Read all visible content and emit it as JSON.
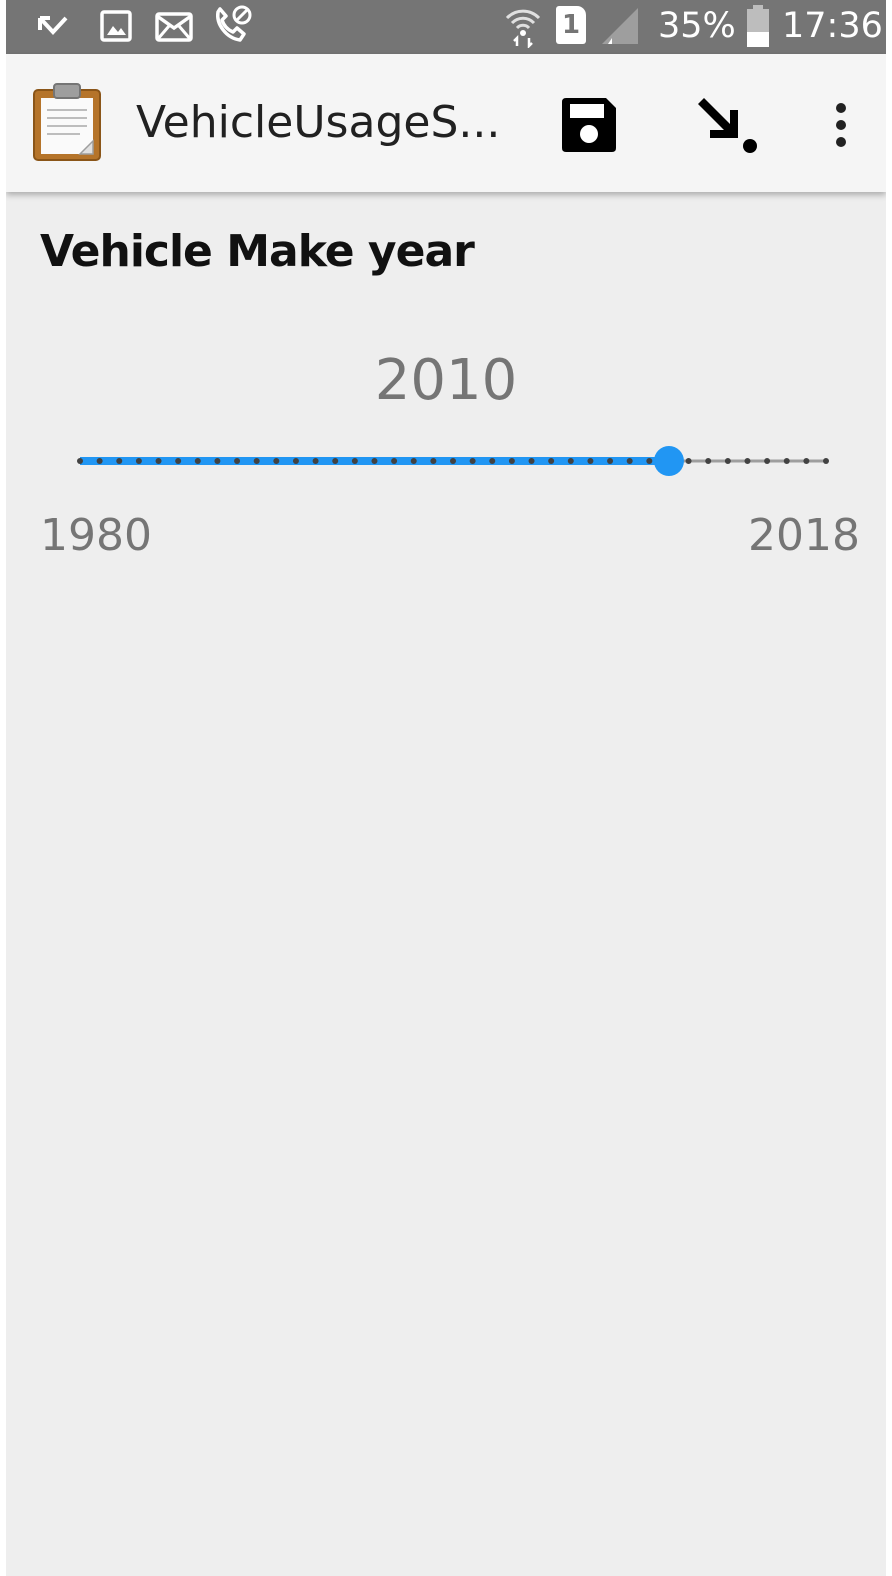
{
  "status_bar": {
    "icons": [
      "missed-call-arrow-icon",
      "image-icon",
      "mail-icon",
      "call-blocked-icon",
      "wifi-hotspot-icon",
      "sim-1-icon",
      "signal-icon",
      "battery-icon"
    ],
    "sim_label": "1",
    "battery": "35%",
    "time": "17:36"
  },
  "app_bar": {
    "icon": "clipboard-icon",
    "title": "VehicleUsageS...",
    "actions": {
      "save": "save-icon",
      "jump": "jump-arrow-icon",
      "more": "more-vert-icon"
    }
  },
  "question": {
    "label": "Vehicle Make year"
  },
  "slider": {
    "min": 1980,
    "max": 2018,
    "step": 1,
    "value": 2010,
    "value_text": "2010",
    "min_text": "1980",
    "max_text": "2018"
  },
  "colors": {
    "status_bar": "#757575",
    "app_bar": "#f5f5f5",
    "background": "#eeeeee",
    "accent": "#2196f3",
    "tick": "#424242",
    "secondary_text": "#757575"
  }
}
